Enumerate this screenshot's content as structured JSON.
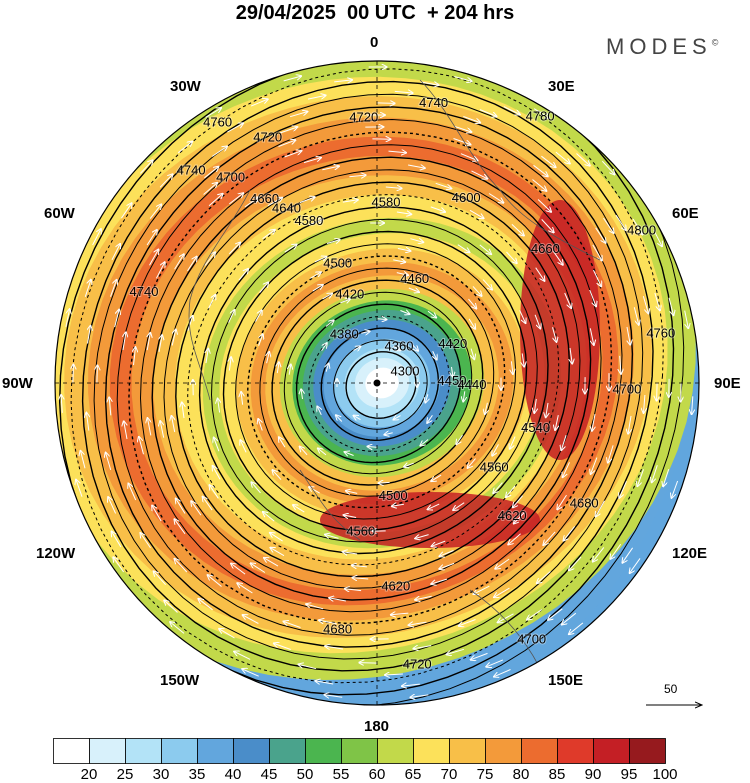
{
  "title": "29/04/2025  00 UTC  + 204 hrs",
  "brand": "MODES",
  "brand_mark": "©",
  "longitude_labels": {
    "n": "0",
    "ne": "30E",
    "ene": "60E",
    "e": "90E",
    "ese": "120E",
    "se": "150E",
    "s": "180",
    "sw": "150W",
    "wsw": "120W",
    "w": "90W",
    "wnw": "60W",
    "nw": "30W"
  },
  "colorbar": {
    "ticks": [
      "20",
      "25",
      "30",
      "35",
      "40",
      "45",
      "50",
      "55",
      "60",
      "65",
      "70",
      "75",
      "80",
      "85",
      "90",
      "95",
      "100"
    ],
    "colors": [
      "#ffffff",
      "#d8f1fb",
      "#b3e3f7",
      "#8ccbee",
      "#62a6dd",
      "#4a8dc9",
      "#4aa38c",
      "#4bb54f",
      "#7fc447",
      "#c2d94a",
      "#fce15a",
      "#f8bf48",
      "#f39a3a",
      "#ec6c2f",
      "#df3a2a",
      "#c41f25",
      "#961a1e"
    ]
  },
  "contour_labels": [
    "4300",
    "4360",
    "4380",
    "4420",
    "4440",
    "4450",
    "4460",
    "4500",
    "4540",
    "4560",
    "4580",
    "4600",
    "4620",
    "4640",
    "4660",
    "4680",
    "4700",
    "4720",
    "4740",
    "4760",
    "4780",
    "4800"
  ],
  "scale_arrow": {
    "label": "50"
  }
}
